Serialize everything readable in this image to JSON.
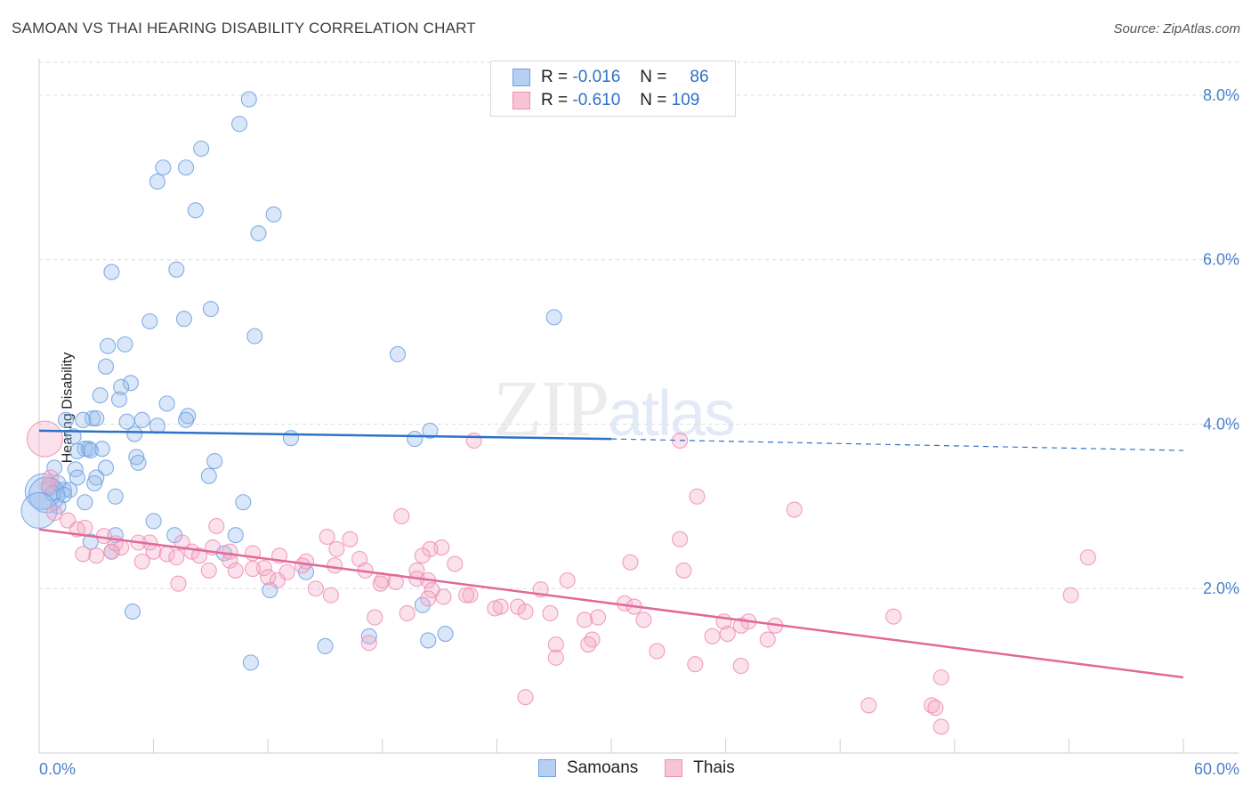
{
  "title": "SAMOAN VS THAI HEARING DISABILITY CORRELATION CHART",
  "source": "Source: ZipAtlas.com",
  "watermark": {
    "zip": "ZIP",
    "atlas": "atlas"
  },
  "legend": {
    "rows": [
      {
        "r_label": "R =",
        "r_value": "-0.016",
        "n_label": "N =",
        "n_value": "86",
        "color": "#6ea1e0"
      },
      {
        "r_label": "R =",
        "r_value": "-0.610",
        "n_label": "N =",
        "n_value": "109",
        "color": "#ef8fb0"
      }
    ]
  },
  "bottom_legend": [
    "Samoans",
    "Thais"
  ],
  "chart_data": {
    "type": "scatter",
    "title": "SAMOAN VS THAI HEARING DISABILITY CORRELATION CHART",
    "xlabel": "",
    "ylabel": "Hearing Disability",
    "xlim": [
      0,
      60
    ],
    "ylim": [
      0,
      8.4
    ],
    "x_tick_labels": [
      "0.0%",
      "60.0%"
    ],
    "y_ticks": [
      2,
      4,
      6,
      8
    ],
    "y_tick_labels": [
      "2.0%",
      "4.0%",
      "6.0%",
      "8.0%"
    ],
    "grid": "horizontal dashed",
    "legend_position": "top-center",
    "series": [
      {
        "name": "Samoans",
        "color": "#6ea1e0",
        "trend": {
          "x": [
            0,
            30
          ],
          "y": [
            3.92,
            3.82
          ],
          "extended_to": [
            60,
            3.68
          ]
        },
        "points": [
          [
            11.0,
            7.95
          ],
          [
            10.5,
            7.65
          ],
          [
            8.5,
            7.35
          ],
          [
            6.5,
            7.12
          ],
          [
            7.7,
            7.12
          ],
          [
            6.2,
            6.95
          ],
          [
            8.2,
            6.6
          ],
          [
            12.3,
            6.55
          ],
          [
            11.5,
            6.32
          ],
          [
            7.2,
            5.88
          ],
          [
            3.8,
            5.85
          ],
          [
            9.0,
            5.4
          ],
          [
            5.8,
            5.25
          ],
          [
            7.6,
            5.28
          ],
          [
            27.0,
            5.3
          ],
          [
            11.3,
            5.07
          ],
          [
            4.5,
            4.97
          ],
          [
            3.6,
            4.95
          ],
          [
            18.8,
            4.85
          ],
          [
            3.5,
            4.7
          ],
          [
            4.8,
            4.5
          ],
          [
            4.3,
            4.45
          ],
          [
            3.2,
            4.35
          ],
          [
            4.2,
            4.3
          ],
          [
            6.7,
            4.25
          ],
          [
            7.8,
            4.1
          ],
          [
            2.8,
            4.07
          ],
          [
            3.0,
            4.07
          ],
          [
            5.4,
            4.05
          ],
          [
            7.7,
            4.05
          ],
          [
            2.3,
            4.05
          ],
          [
            1.4,
            4.05
          ],
          [
            4.6,
            4.03
          ],
          [
            6.2,
            3.98
          ],
          [
            20.5,
            3.92
          ],
          [
            5.0,
            3.88
          ],
          [
            13.2,
            3.83
          ],
          [
            19.7,
            3.82
          ],
          [
            1.8,
            3.85
          ],
          [
            2.4,
            3.7
          ],
          [
            2.6,
            3.7
          ],
          [
            3.3,
            3.7
          ],
          [
            2.7,
            3.68
          ],
          [
            2.0,
            3.67
          ],
          [
            5.1,
            3.6
          ],
          [
            5.2,
            3.53
          ],
          [
            9.2,
            3.55
          ],
          [
            3.5,
            3.47
          ],
          [
            0.8,
            3.47
          ],
          [
            1.9,
            3.45
          ],
          [
            8.9,
            3.37
          ],
          [
            3.0,
            3.35
          ],
          [
            2.0,
            3.35
          ],
          [
            1.0,
            3.28
          ],
          [
            2.9,
            3.28
          ],
          [
            0.5,
            3.22
          ],
          [
            1.3,
            3.2
          ],
          [
            1.6,
            3.2
          ],
          [
            0.2,
            3.18
          ],
          [
            0.7,
            3.16
          ],
          [
            0.4,
            3.14
          ],
          [
            1.3,
            3.14
          ],
          [
            4.0,
            3.12
          ],
          [
            2.4,
            3.05
          ],
          [
            10.7,
            3.05
          ],
          [
            1.0,
            3.0
          ],
          [
            6.0,
            2.82
          ],
          [
            7.1,
            2.65
          ],
          [
            10.3,
            2.65
          ],
          [
            4.0,
            2.65
          ],
          [
            2.7,
            2.57
          ],
          [
            3.8,
            2.45
          ],
          [
            9.7,
            2.43
          ],
          [
            14.0,
            2.2
          ],
          [
            12.1,
            1.98
          ],
          [
            20.1,
            1.8
          ],
          [
            4.9,
            1.72
          ],
          [
            17.3,
            1.42
          ],
          [
            21.3,
            1.45
          ],
          [
            15.0,
            1.3
          ],
          [
            20.4,
            1.37
          ],
          [
            11.1,
            1.1
          ],
          [
            0.0,
            2.95
          ]
        ]
      },
      {
        "name": "Thais",
        "color": "#ef8fb0",
        "trend": {
          "x": [
            0,
            60
          ],
          "y": [
            2.72,
            0.92
          ]
        },
        "points": [
          [
            0.3,
            3.82
          ],
          [
            22.8,
            3.8
          ],
          [
            33.6,
            3.8
          ],
          [
            0.6,
            3.35
          ],
          [
            0.5,
            3.25
          ],
          [
            34.5,
            3.12
          ],
          [
            39.6,
            2.96
          ],
          [
            19.0,
            2.88
          ],
          [
            0.8,
            2.92
          ],
          [
            1.5,
            2.83
          ],
          [
            2.4,
            2.74
          ],
          [
            9.3,
            2.76
          ],
          [
            2.0,
            2.72
          ],
          [
            15.1,
            2.63
          ],
          [
            16.3,
            2.6
          ],
          [
            33.6,
            2.6
          ],
          [
            3.4,
            2.64
          ],
          [
            4.0,
            2.55
          ],
          [
            5.8,
            2.56
          ],
          [
            7.5,
            2.56
          ],
          [
            4.3,
            2.5
          ],
          [
            5.2,
            2.56
          ],
          [
            21.1,
            2.5
          ],
          [
            15.6,
            2.48
          ],
          [
            20.5,
            2.48
          ],
          [
            3.8,
            2.45
          ],
          [
            6.0,
            2.45
          ],
          [
            9.1,
            2.5
          ],
          [
            10.0,
            2.45
          ],
          [
            8.0,
            2.45
          ],
          [
            11.2,
            2.43
          ],
          [
            3.0,
            2.4
          ],
          [
            6.7,
            2.42
          ],
          [
            8.4,
            2.4
          ],
          [
            12.6,
            2.4
          ],
          [
            14.0,
            2.33
          ],
          [
            16.8,
            2.36
          ],
          [
            20.1,
            2.4
          ],
          [
            7.2,
            2.38
          ],
          [
            13.8,
            2.28
          ],
          [
            5.4,
            2.33
          ],
          [
            10.0,
            2.34
          ],
          [
            11.8,
            2.25
          ],
          [
            15.5,
            2.28
          ],
          [
            21.8,
            2.3
          ],
          [
            31.0,
            2.32
          ],
          [
            13.0,
            2.2
          ],
          [
            17.1,
            2.22
          ],
          [
            19.8,
            2.22
          ],
          [
            33.8,
            2.22
          ],
          [
            55.0,
            2.38
          ],
          [
            8.9,
            2.22
          ],
          [
            10.3,
            2.22
          ],
          [
            11.2,
            2.24
          ],
          [
            19.8,
            2.12
          ],
          [
            27.7,
            2.1
          ],
          [
            12.0,
            2.14
          ],
          [
            12.5,
            2.1
          ],
          [
            18.0,
            2.1
          ],
          [
            20.4,
            2.1
          ],
          [
            7.3,
            2.06
          ],
          [
            18.7,
            2.08
          ],
          [
            14.5,
            2.0
          ],
          [
            17.9,
            2.06
          ],
          [
            20.6,
            1.98
          ],
          [
            26.3,
            1.99
          ],
          [
            20.4,
            1.88
          ],
          [
            15.3,
            1.92
          ],
          [
            22.6,
            1.92
          ],
          [
            21.2,
            1.9
          ],
          [
            22.4,
            1.92
          ],
          [
            30.7,
            1.82
          ],
          [
            54.1,
            1.92
          ],
          [
            24.2,
            1.78
          ],
          [
            25.1,
            1.78
          ],
          [
            31.2,
            1.78
          ],
          [
            23.9,
            1.76
          ],
          [
            25.5,
            1.72
          ],
          [
            26.8,
            1.7
          ],
          [
            19.3,
            1.7
          ],
          [
            17.6,
            1.65
          ],
          [
            29.3,
            1.65
          ],
          [
            44.8,
            1.66
          ],
          [
            28.6,
            1.62
          ],
          [
            31.7,
            1.62
          ],
          [
            37.2,
            1.6
          ],
          [
            35.9,
            1.6
          ],
          [
            36.8,
            1.55
          ],
          [
            38.6,
            1.55
          ],
          [
            36.1,
            1.45
          ],
          [
            35.3,
            1.42
          ],
          [
            29.0,
            1.38
          ],
          [
            38.2,
            1.38
          ],
          [
            28.8,
            1.32
          ],
          [
            27.1,
            1.32
          ],
          [
            17.3,
            1.34
          ],
          [
            32.4,
            1.24
          ],
          [
            27.1,
            1.16
          ],
          [
            36.8,
            1.06
          ],
          [
            34.4,
            1.08
          ],
          [
            47.3,
            0.92
          ],
          [
            25.5,
            0.68
          ],
          [
            43.5,
            0.58
          ],
          [
            46.8,
            0.58
          ],
          [
            47.0,
            0.55
          ],
          [
            47.3,
            0.32
          ],
          [
            2.3,
            2.42
          ]
        ]
      }
    ]
  }
}
